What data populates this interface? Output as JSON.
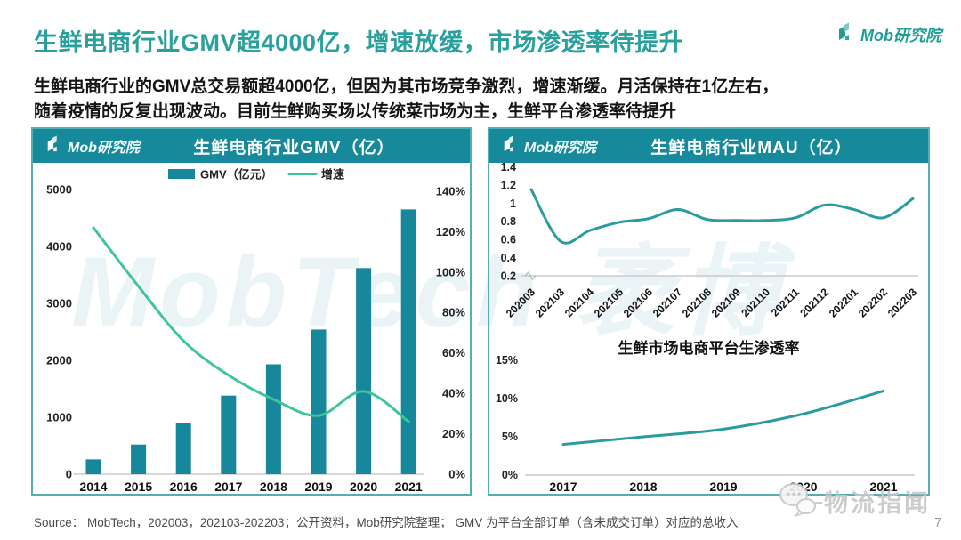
{
  "page": {
    "title": "生鲜电商行业GMV超4000亿，增速放缓，市场渗透率待提升",
    "subtitle_line1": "生鲜电商行业的GMV总交易额超4000亿，但因为其市场竞争激烈，增速渐缓。月活保持在1亿左右，",
    "subtitle_line2": "随着疫情的反复出现波动。目前生鲜购买场以传统菜市场为主，生鲜平台渗透率待提升",
    "brand": "Mob研究院",
    "source": "Source：  MobTech，202003，202103-202203；公开资料，Mob研究院整理；  GMV 为平台全部订单（含未成交订单）对应的总收入",
    "page_number": "7",
    "center_watermark": "MobTech 袤博",
    "bottom_right_watermark": "物流指闻"
  },
  "colors": {
    "accent_title": "#2AA09D",
    "panel_header": "#16899A",
    "panel_border": "#54AFB4",
    "bar": "#17879B",
    "growth_line": "#3FC49B",
    "teal_line": "#2A9C9E",
    "source_text": "#4A4A4A"
  },
  "chart_data": [
    {
      "type": "bar",
      "title": "生鲜电商行业GMV（亿）",
      "categories": [
        "2014",
        "2015",
        "2016",
        "2017",
        "2018",
        "2019",
        "2020",
        "2021"
      ],
      "series": [
        {
          "name": "GMV（亿元）",
          "type": "bar",
          "axis": "left",
          "values": [
            260,
            520,
            900,
            1380,
            1930,
            2540,
            3620,
            4650
          ]
        },
        {
          "name": "增速",
          "type": "line",
          "axis": "right",
          "values": [
            122,
            93,
            66,
            49,
            37,
            29,
            41,
            26
          ]
        }
      ],
      "left_axis": {
        "ticks": [
          "5000",
          "4000",
          "3000",
          "2000",
          "1000",
          "0"
        ],
        "min": 0,
        "max": 5000
      },
      "right_axis": {
        "ticks": [
          "140%",
          "120%",
          "100%",
          "80%",
          "60%",
          "40%",
          "20%",
          "0%"
        ],
        "min": 0,
        "max": 140,
        "unit": "%"
      },
      "legend_position": "top"
    },
    {
      "type": "line",
      "title": "生鲜电商行业MAU（亿）",
      "categories": [
        "202003",
        "202103",
        "202104",
        "202105",
        "202106",
        "202107",
        "202108",
        "202109",
        "202110",
        "202111",
        "202112",
        "202201",
        "202202",
        "202203"
      ],
      "values": [
        1.15,
        0.58,
        0.7,
        0.79,
        0.83,
        0.93,
        0.82,
        0.81,
        0.81,
        0.84,
        0.98,
        0.93,
        0.84,
        1.05
      ],
      "y_ticks": [
        "1.4",
        "1.2",
        "1",
        "0.8",
        "0.6",
        "0.4",
        "0.2"
      ],
      "ylim": [
        0.2,
        1.45
      ],
      "grid": "baseline-only"
    },
    {
      "type": "line",
      "title": "生鲜市场电商平台生渗透率",
      "categories": [
        "2017",
        "2018",
        "2019",
        "2020",
        "2021"
      ],
      "values": [
        4,
        5,
        6,
        8,
        11
      ],
      "y_ticks": [
        "15%",
        "10%",
        "5%",
        "0%"
      ],
      "ylim": [
        0,
        15
      ],
      "unit": "%",
      "grid": "baseline-only"
    }
  ]
}
